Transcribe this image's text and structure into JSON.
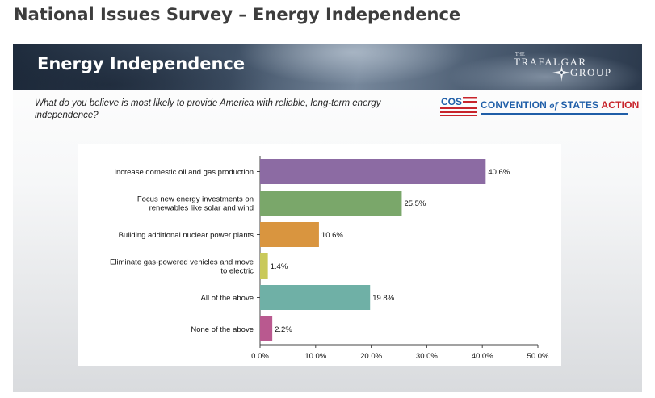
{
  "page": {
    "title": "National Issues Survey – Energy Independence"
  },
  "slide": {
    "title": "Energy Independence",
    "question": "What do you believe is most likely to provide America with reliable, long-term energy independence?",
    "brand": {
      "small": "THE",
      "line1": "TRAFALGAR",
      "line2": "GROUP"
    },
    "cos": {
      "mark": "COS",
      "text_main": "CONVENTION ",
      "text_of": "of",
      "text_states": " STATES ",
      "text_action": "ACTION"
    }
  },
  "chart_data": {
    "type": "bar",
    "orientation": "horizontal",
    "categories": [
      [
        "Increase domestic oil and gas production"
      ],
      [
        "Focus new energy investments on",
        "renewables like solar and wind"
      ],
      [
        "Building additional nuclear power plants"
      ],
      [
        "Eliminate gas-powered vehicles and move",
        "to electric"
      ],
      [
        "All of the above"
      ],
      [
        "None of the above"
      ]
    ],
    "values": [
      40.6,
      25.5,
      10.6,
      1.4,
      19.8,
      2.2
    ],
    "value_labels": [
      "40.6%",
      "25.5%",
      "10.6%",
      "1.4%",
      "19.8%",
      "2.2%"
    ],
    "colors": [
      "#8c6ba3",
      "#7aa76a",
      "#d9953f",
      "#c9c95a",
      "#6fb0a6",
      "#b9598f"
    ],
    "xlim": [
      0,
      50
    ],
    "xticks": [
      0,
      10,
      20,
      30,
      40,
      50
    ],
    "xtick_labels": [
      "0.0%",
      "10.0%",
      "20.0%",
      "30.0%",
      "40.0%",
      "50.0%"
    ],
    "title": "",
    "xlabel": "",
    "ylabel": "",
    "grid": false,
    "legend": "none"
  }
}
